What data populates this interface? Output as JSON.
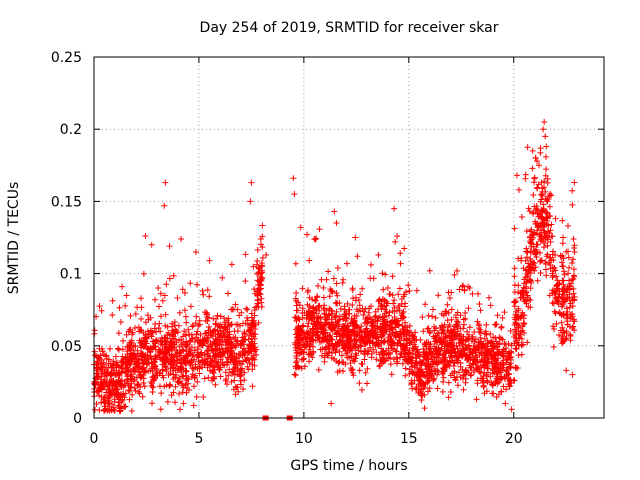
{
  "chart_data": {
    "type": "scatter",
    "title": "Day 254 of 2019, SRMTID for receiver skar",
    "xlabel": "GPS time / hours",
    "ylabel": "SRMTID / TECUs",
    "xlim": [
      0,
      24.3
    ],
    "ylim": [
      0,
      0.25
    ],
    "xticks": [
      "0",
      "5",
      "10",
      "15",
      "20"
    ],
    "yticks": [
      "0",
      "0.05",
      "0.1",
      "0.15",
      "0.2",
      "0.25"
    ],
    "grid": true,
    "legend": "none",
    "marker_color": "#ff0000",
    "marker": "plus",
    "series": [
      {
        "segments": [
          {
            "x_start": 0.0,
            "x_end": 7.75,
            "trend": [
              [
                0.0,
                0.028
              ],
              [
                1.0,
                0.022
              ],
              [
                2.0,
                0.042
              ],
              [
                3.0,
                0.046
              ],
              [
                4.0,
                0.038
              ],
              [
                5.0,
                0.048
              ],
              [
                6.0,
                0.05
              ],
              [
                7.0,
                0.042
              ],
              [
                7.75,
                0.06
              ]
            ],
            "spread": 0.022
          },
          {
            "x_start": 7.75,
            "x_end": 8.05,
            "trend": [
              [
                7.75,
                0.09
              ],
              [
                8.05,
                0.1
              ]
            ],
            "spread": 0.02
          },
          {
            "x_start": 9.55,
            "x_end": 14.8,
            "trend": [
              [
                9.55,
                0.055
              ],
              [
                10.5,
                0.065
              ],
              [
                11.5,
                0.06
              ],
              [
                12.5,
                0.055
              ],
              [
                13.5,
                0.06
              ],
              [
                14.8,
                0.06
              ]
            ],
            "spread": 0.022
          },
          {
            "x_start": 14.8,
            "x_end": 19.9,
            "trend": [
              [
                14.8,
                0.05
              ],
              [
                15.5,
                0.032
              ],
              [
                16.5,
                0.05
              ],
              [
                17.5,
                0.048
              ],
              [
                18.5,
                0.042
              ],
              [
                19.5,
                0.035
              ],
              [
                19.9,
                0.035
              ]
            ],
            "spread": 0.02
          },
          {
            "x_start": 20.0,
            "x_end": 22.9,
            "trend": [
              [
                20.0,
                0.06
              ],
              [
                20.5,
                0.08
              ],
              [
                21.0,
                0.13
              ],
              [
                21.5,
                0.14
              ],
              [
                22.0,
                0.085
              ],
              [
                22.5,
                0.08
              ],
              [
                22.9,
                0.085
              ]
            ],
            "spread": 0.03
          }
        ],
        "zero_points": [
          8.15,
          8.2,
          9.3,
          9.35
        ],
        "peaks": [
          [
            3.4,
            0.163
          ],
          [
            3.35,
            0.147
          ],
          [
            3.6,
            0.119
          ],
          [
            4.15,
            0.124
          ],
          [
            2.45,
            0.126
          ],
          [
            2.75,
            0.12
          ],
          [
            5.5,
            0.109
          ],
          [
            7.5,
            0.163
          ],
          [
            7.45,
            0.15
          ],
          [
            7.95,
            0.124
          ],
          [
            8.2,
            0.113
          ],
          [
            9.5,
            0.166
          ],
          [
            9.55,
            0.155
          ],
          [
            9.85,
            0.132
          ],
          [
            10.15,
            0.127
          ],
          [
            10.5,
            0.124
          ],
          [
            11.45,
            0.143
          ],
          [
            11.55,
            0.135
          ],
          [
            12.45,
            0.125
          ],
          [
            12.55,
            0.112
          ],
          [
            13.2,
            0.106
          ],
          [
            13.55,
            0.113
          ],
          [
            14.3,
            0.145
          ],
          [
            14.35,
            0.122
          ],
          [
            14.0,
            0.09
          ],
          [
            16.0,
            0.102
          ],
          [
            16.4,
            0.085
          ],
          [
            17.55,
            0.091
          ],
          [
            17.9,
            0.09
          ],
          [
            18.3,
            0.086
          ],
          [
            18.9,
            0.078
          ],
          [
            20.15,
            0.168
          ],
          [
            20.25,
            0.158
          ],
          [
            20.9,
            0.185
          ],
          [
            21.05,
            0.18
          ],
          [
            21.2,
            0.175
          ],
          [
            21.4,
            0.2
          ],
          [
            21.45,
            0.205
          ],
          [
            21.5,
            0.195
          ],
          [
            21.55,
            0.188
          ],
          [
            21.35,
            0.155
          ],
          [
            21.6,
            0.15
          ],
          [
            21.7,
            0.14
          ],
          [
            21.75,
            0.13
          ],
          [
            22.35,
            0.125
          ],
          [
            22.85,
            0.124
          ],
          [
            22.9,
            0.115
          ],
          [
            19.9,
            0.006
          ],
          [
            19.6,
            0.01
          ],
          [
            11.3,
            0.01
          ],
          [
            0.55,
            0.006
          ],
          [
            1.5,
            0.008
          ],
          [
            4.1,
            0.006
          ],
          [
            17.0,
            0.018
          ],
          [
            22.5,
            0.033
          ],
          [
            22.8,
            0.03
          ]
        ]
      }
    ]
  }
}
